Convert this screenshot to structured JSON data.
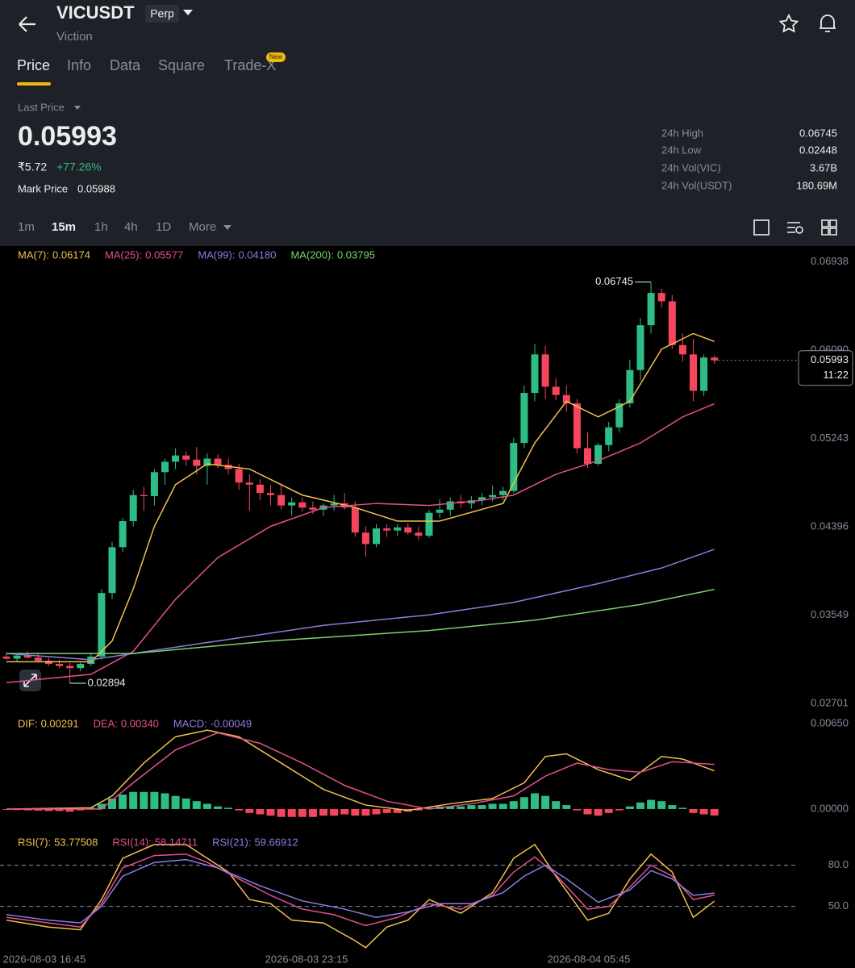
{
  "header": {
    "symbol": "VICUSDT",
    "badge": "Perp",
    "name": "Viction"
  },
  "tabs": [
    "Price",
    "Info",
    "Data",
    "Square",
    "Trade-X"
  ],
  "new_badge": "New",
  "price_panel": {
    "last_price_label": "Last Price",
    "last_price": "0.05993",
    "fiat": "₹5.72",
    "change": "+77.26%",
    "mark_price_label": "Mark Price",
    "mark_price": "0.05988",
    "stats": [
      {
        "label": "24h High",
        "value": "0.06745"
      },
      {
        "label": "24h Low",
        "value": "0.02448"
      },
      {
        "label": "24h Vol(VIC)",
        "value": "3.67B"
      },
      {
        "label": "24h Vol(USDT)",
        "value": "180.69M"
      }
    ]
  },
  "timeframes": [
    "1m",
    "15m",
    "1h",
    "4h",
    "1D",
    "More"
  ],
  "chart_data": [
    {
      "type": "candlestick",
      "ylim": [
        0.026,
        0.0709
      ],
      "yticks": [
        0.06938,
        {
          "value": 0.0609,
          "label": "0.06090"
        },
        0.05243,
        0.04396,
        0.03549,
        0.02701
      ],
      "grid": false,
      "up_color": "#2ebd85",
      "down_color": "#f6465d",
      "countdown": "11:22",
      "x_labels": [
        "2026-08-03 16:45",
        "2026-08-03 23:15",
        "2026-08-04 05:45"
      ],
      "candles": [
        [
          0.0315,
          0.0319,
          0.0312,
          0.0313
        ],
        [
          0.0313,
          0.0317,
          0.031,
          0.0316
        ],
        [
          0.0316,
          0.032,
          0.0313,
          0.0314
        ],
        [
          0.0314,
          0.0318,
          0.0309,
          0.0311
        ],
        [
          0.0311,
          0.0314,
          0.0306,
          0.0308
        ],
        [
          0.0308,
          0.0312,
          0.0304,
          0.0306
        ],
        [
          0.0306,
          0.0309,
          0.02894,
          0.0304
        ],
        [
          0.0304,
          0.031,
          0.0301,
          0.0308
        ],
        [
          0.0308,
          0.0318,
          0.0306,
          0.0315
        ],
        [
          0.0315,
          0.038,
          0.0312,
          0.0376
        ],
        [
          0.0376,
          0.0425,
          0.037,
          0.042
        ],
        [
          0.042,
          0.0448,
          0.0415,
          0.0445
        ],
        [
          0.0445,
          0.0475,
          0.044,
          0.047
        ],
        [
          0.047,
          0.0478,
          0.0455,
          0.0469
        ],
        [
          0.0469,
          0.0495,
          0.046,
          0.0492
        ],
        [
          0.0492,
          0.0505,
          0.048,
          0.0502
        ],
        [
          0.0502,
          0.0515,
          0.0495,
          0.0508
        ],
        [
          0.0508,
          0.0512,
          0.0498,
          0.0504
        ],
        [
          0.0504,
          0.0516,
          0.049,
          0.0498
        ],
        [
          0.0498,
          0.051,
          0.048,
          0.0505
        ],
        [
          0.0505,
          0.0509,
          0.0496,
          0.0499
        ],
        [
          0.0499,
          0.0505,
          0.049,
          0.0495
        ],
        [
          0.0495,
          0.05,
          0.0475,
          0.0482
        ],
        [
          0.0482,
          0.049,
          0.0455,
          0.048
        ],
        [
          0.048,
          0.0485,
          0.0465,
          0.0472
        ],
        [
          0.0472,
          0.048,
          0.046,
          0.047
        ],
        [
          0.047,
          0.048,
          0.0456,
          0.046
        ],
        [
          0.046,
          0.0468,
          0.045,
          0.0463
        ],
        [
          0.0463,
          0.0468,
          0.0454,
          0.0458
        ],
        [
          0.0458,
          0.0464,
          0.0452,
          0.0456
        ],
        [
          0.0456,
          0.0462,
          0.045,
          0.046
        ],
        [
          0.046,
          0.047,
          0.0455,
          0.0462
        ],
        [
          0.0462,
          0.0472,
          0.0456,
          0.0458
        ],
        [
          0.0458,
          0.0464,
          0.043,
          0.0434
        ],
        [
          0.0434,
          0.044,
          0.0411,
          0.0423
        ],
        [
          0.0423,
          0.0442,
          0.042,
          0.0438
        ],
        [
          0.0438,
          0.0442,
          0.043,
          0.0436
        ],
        [
          0.0436,
          0.0442,
          0.0431,
          0.0439
        ],
        [
          0.0439,
          0.0443,
          0.0432,
          0.0434
        ],
        [
          0.0434,
          0.044,
          0.0427,
          0.0431
        ],
        [
          0.0431,
          0.0456,
          0.0429,
          0.0453
        ],
        [
          0.0453,
          0.0466,
          0.0448,
          0.0456
        ],
        [
          0.0456,
          0.0468,
          0.045,
          0.0464
        ],
        [
          0.0464,
          0.047,
          0.0458,
          0.0462
        ],
        [
          0.0462,
          0.0469,
          0.0457,
          0.0465
        ],
        [
          0.0465,
          0.0472,
          0.046,
          0.0468
        ],
        [
          0.0468,
          0.0479,
          0.0464,
          0.047
        ],
        [
          0.047,
          0.0478,
          0.0465,
          0.0474
        ],
        [
          0.0474,
          0.0525,
          0.0472,
          0.052
        ],
        [
          0.052,
          0.0575,
          0.0515,
          0.0568
        ],
        [
          0.0568,
          0.0615,
          0.056,
          0.0605
        ],
        [
          0.0605,
          0.0613,
          0.0562,
          0.0574
        ],
        [
          0.0574,
          0.0582,
          0.0561,
          0.0566
        ],
        [
          0.0566,
          0.0575,
          0.055,
          0.0558
        ],
        [
          0.0558,
          0.0562,
          0.051,
          0.0515
        ],
        [
          0.0515,
          0.053,
          0.0496,
          0.05
        ],
        [
          0.05,
          0.052,
          0.0498,
          0.0518
        ],
        [
          0.0518,
          0.054,
          0.0512,
          0.0535
        ],
        [
          0.0535,
          0.0562,
          0.053,
          0.0558
        ],
        [
          0.0558,
          0.06,
          0.0554,
          0.059
        ],
        [
          0.059,
          0.064,
          0.058,
          0.0633
        ],
        [
          0.0633,
          0.06745,
          0.0625,
          0.0664
        ],
        [
          0.0664,
          0.0668,
          0.065,
          0.0656
        ],
        [
          0.0656,
          0.0662,
          0.061,
          0.0614
        ],
        [
          0.0614,
          0.0625,
          0.0598,
          0.0605
        ],
        [
          0.0605,
          0.062,
          0.056,
          0.057
        ],
        [
          0.057,
          0.0605,
          0.0565,
          0.0602
        ],
        [
          0.0602,
          0.0604,
          0.0596,
          0.05993
        ]
      ],
      "series": [
        {
          "name": "MA(7):",
          "color": "#f0c14b",
          "x": [
            0,
            8,
            10,
            12,
            14,
            16,
            19,
            23,
            28,
            33,
            37,
            41,
            47,
            50,
            53,
            56,
            59,
            62,
            65,
            67
          ],
          "values": [
            0.031,
            0.031,
            0.033,
            0.038,
            0.044,
            0.048,
            0.05,
            0.0495,
            0.047,
            0.0458,
            0.0445,
            0.0445,
            0.0462,
            0.052,
            0.056,
            0.0545,
            0.056,
            0.061,
            0.0625,
            0.06174
          ]
        },
        {
          "name": "MA(25):",
          "color": "#e5508e",
          "x": [
            0,
            8,
            12,
            16,
            20,
            25,
            30,
            35,
            40,
            45,
            48,
            52,
            56,
            60,
            64,
            67
          ],
          "values": [
            0.029,
            0.0298,
            0.032,
            0.037,
            0.041,
            0.044,
            0.0458,
            0.0462,
            0.046,
            0.0465,
            0.047,
            0.049,
            0.0503,
            0.052,
            0.0545,
            0.05577
          ]
        },
        {
          "name": "MA(99):",
          "color": "#8b7ee0",
          "value_label": "0.04180",
          "x": [
            0,
            8,
            12,
            20,
            30,
            40,
            48,
            56,
            62,
            67
          ],
          "values": [
            0.0318,
            0.0312,
            0.0318,
            0.033,
            0.0345,
            0.0355,
            0.0367,
            0.0385,
            0.04,
            0.0418
          ]
        },
        {
          "name": "MA(200):",
          "color": "#7ad36b",
          "x": [
            0,
            12,
            25,
            40,
            50,
            60,
            67
          ],
          "values": [
            0.0318,
            0.0318,
            0.033,
            0.034,
            0.035,
            0.0365,
            0.03795
          ]
        }
      ]
    },
    {
      "type": "macd",
      "ylim": [
        -0.00166,
        0.00724
      ],
      "yticks": [
        {
          "value": 0.0065,
          "label": "0.00650"
        },
        {
          "value": 0,
          "label": "0.00000"
        }
      ],
      "grid": false,
      "histogram_name": "MACD:",
      "up_color": "#2ebd85",
      "down_color": "#f6465d",
      "label_color": "#8b7ee0",
      "histogram": [
        -5e-05,
        -8e-05,
        -0.0001,
        -0.00012,
        -0.00015,
        -0.00015,
        -0.0002,
        -0.0001,
        0.0001,
        0.0004,
        0.0008,
        0.0011,
        0.0013,
        0.0013,
        0.0013,
        0.0012,
        0.001,
        0.0008,
        0.0006,
        0.0004,
        0.0002,
        0.0001,
        -0.0001,
        -0.0003,
        -0.0004,
        -0.0005,
        -0.0006,
        -0.0006,
        -0.0006,
        -0.0006,
        -0.0005,
        -0.0005,
        -0.0004,
        -0.0005,
        -0.0005,
        -0.0004,
        -0.0003,
        -0.0003,
        -0.0002,
        -0.0001,
        0.0001,
        0.0002,
        0.0002,
        0.0002,
        0.0003,
        0.0003,
        0.0004,
        0.0004,
        0.0006,
        0.0009,
        0.0012,
        0.001,
        0.0006,
        0.0003,
        -0.0001,
        -0.0004,
        -0.0005,
        -0.0003,
        -0.0001,
        0.0002,
        0.0005,
        0.0007,
        0.0006,
        0.0003,
        0.0001,
        -0.0003,
        -0.0004,
        -0.00049
      ],
      "series": [
        {
          "name": "DIF:",
          "color": "#f0c14b",
          "x": [
            0,
            8,
            10,
            13,
            16,
            19,
            22,
            26,
            30,
            34,
            38,
            42,
            46,
            49,
            51,
            53,
            56,
            59,
            62,
            64,
            67
          ],
          "values": [
            0,
            0.0001,
            0.001,
            0.0035,
            0.0055,
            0.006,
            0.0055,
            0.0035,
            0.0015,
            0.0003,
            -0.0001,
            0.0004,
            0.0008,
            0.002,
            0.004,
            0.0042,
            0.003,
            0.0022,
            0.004,
            0.0038,
            0.00291
          ]
        },
        {
          "name": "DEA:",
          "color": "#e5508e",
          "value_label": "0.00340",
          "x": [
            0,
            9,
            12,
            16,
            20,
            24,
            28,
            32,
            36,
            40,
            44,
            48,
            51,
            54,
            57,
            60,
            63,
            67
          ],
          "values": [
            0,
            0,
            0.002,
            0.0045,
            0.0058,
            0.005,
            0.0035,
            0.0018,
            0.0006,
            0,
            0.0004,
            0.001,
            0.0025,
            0.0035,
            0.003,
            0.0028,
            0.0036,
            0.0034
          ]
        }
      ]
    },
    {
      "type": "rsi",
      "ylim": [
        14,
        102
      ],
      "yticks": [
        {
          "value": 80,
          "label": "80.0"
        },
        {
          "value": 50,
          "label": "50.0"
        }
      ],
      "grid": true,
      "series": [
        {
          "name": "RSI(7):",
          "color": "#f0c14b",
          "x": [
            0,
            4,
            7,
            9,
            11,
            14,
            17,
            19,
            21,
            23,
            25,
            27,
            30,
            33,
            34,
            36,
            38,
            40,
            43,
            46,
            48,
            50,
            52,
            55,
            57,
            59,
            61,
            63,
            65,
            67
          ],
          "values": [
            40,
            35,
            33,
            55,
            85,
            95,
            95,
            85,
            75,
            55,
            52,
            40,
            38,
            25,
            20,
            35,
            40,
            55,
            45,
            60,
            85,
            95,
            72,
            40,
            45,
            70,
            88,
            75,
            42,
            53.77508
          ]
        },
        {
          "name": "RSI(14):",
          "color": "#e5508e",
          "x": [
            0,
            4,
            7,
            9,
            11,
            14,
            17,
            19,
            22,
            25,
            28,
            31,
            34,
            37,
            40,
            43,
            46,
            48,
            50,
            52,
            55,
            57,
            59,
            61,
            63,
            65,
            67
          ],
          "values": [
            42,
            38,
            35,
            52,
            78,
            87,
            88,
            82,
            70,
            58,
            48,
            44,
            36,
            42,
            52,
            48,
            58,
            75,
            86,
            73,
            48,
            50,
            64,
            80,
            72,
            55,
            58.14711
          ]
        },
        {
          "name": "RSI(21):",
          "color": "#8b7ee0",
          "x": [
            0,
            4,
            7,
            9,
            11,
            14,
            17,
            20,
            24,
            28,
            32,
            35,
            38,
            41,
            44,
            47,
            49,
            51,
            53,
            56,
            59,
            61,
            63,
            65,
            67
          ],
          "values": [
            44,
            40,
            38,
            50,
            72,
            82,
            84,
            78,
            65,
            54,
            48,
            42,
            46,
            52,
            52,
            60,
            72,
            80,
            70,
            53,
            62,
            76,
            70,
            58,
            59.66912
          ]
        }
      ]
    }
  ]
}
